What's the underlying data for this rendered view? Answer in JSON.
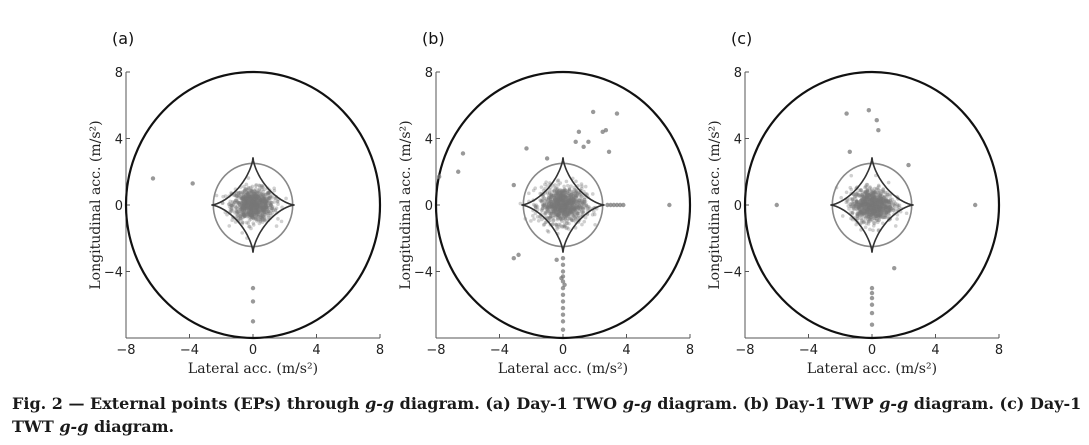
{
  "caption": {
    "fig_no": "Fig. 2",
    "sep": " — ",
    "parts": [
      {
        "text": "External points (EPs) through ",
        "italic": false
      },
      {
        "text": "g-g",
        "italic": true
      },
      {
        "text": " diagram. (a) Day-1 TWO ",
        "italic": false
      },
      {
        "text": "g-g",
        "italic": true
      },
      {
        "text": " diagram. (b) Day-1 TWP ",
        "italic": false
      },
      {
        "text": "g-g",
        "italic": true
      },
      {
        "text": " diagram. (c) Day-1 TWT ",
        "italic": false
      },
      {
        "text": "g-g",
        "italic": true
      },
      {
        "text": " diagram.",
        "italic": false
      }
    ]
  },
  "chart_data": [
    {
      "panel": "(a)",
      "type": "scatter",
      "xlabel": "Lateral acc. (m/s²)",
      "ylabel": "Longitudinal acc. (m/s²)",
      "xlim": [
        -8,
        8
      ],
      "ylim": [
        -8,
        8
      ],
      "xticks": [
        -8,
        -4,
        0,
        4,
        8
      ],
      "yticks": [
        8,
        4,
        0,
        -4
      ],
      "outer_circle_radius": 8,
      "inner_circle_radius": 2.5,
      "central_cluster": {
        "center": [
          0,
          0
        ],
        "spread_x": 1.2,
        "spread_y": 0.9
      },
      "external_points": [
        [
          -6.3,
          1.6
        ],
        [
          -3.8,
          1.3
        ],
        [
          0,
          -5
        ],
        [
          0,
          -5.8
        ],
        [
          0,
          -7
        ]
      ]
    },
    {
      "panel": "(b)",
      "type": "scatter",
      "xlabel": "Lateral acc. (m/s²)",
      "ylabel": "Longitudinal acc. (m/s²)",
      "xlim": [
        -8,
        8
      ],
      "ylim": [
        -8,
        8
      ],
      "xticks": [
        -8,
        -4,
        0,
        4,
        8
      ],
      "yticks": [
        8,
        4,
        0,
        -4
      ],
      "outer_circle_radius": 8,
      "inner_circle_radius": 2.5,
      "central_cluster": {
        "center": [
          0,
          0
        ],
        "spread_x": 1.3,
        "spread_y": 1.0
      },
      "external_points": [
        [
          -7.8,
          1.7
        ],
        [
          -6.3,
          3.1
        ],
        [
          -6.6,
          2.0
        ],
        [
          -2.3,
          3.4
        ],
        [
          -1.0,
          2.8
        ],
        [
          -3.1,
          1.2
        ],
        [
          0.8,
          3.8
        ],
        [
          1.0,
          4.4
        ],
        [
          1.3,
          3.5
        ],
        [
          1.6,
          3.8
        ],
        [
          1.9,
          5.6
        ],
        [
          2.5,
          4.4
        ],
        [
          2.7,
          4.5
        ],
        [
          3.4,
          5.5
        ],
        [
          2.9,
          3.2
        ],
        [
          2.8,
          0
        ],
        [
          3.0,
          0
        ],
        [
          3.2,
          0
        ],
        [
          3.4,
          0
        ],
        [
          3.6,
          0
        ],
        [
          3.8,
          0
        ],
        [
          6.7,
          0
        ],
        [
          -3.1,
          -3.2
        ],
        [
          -2.8,
          -3.0
        ],
        [
          -0.4,
          -3.3
        ],
        [
          0,
          -3.2
        ],
        [
          0,
          -3.6
        ],
        [
          0,
          -4.0
        ],
        [
          0,
          -4.3
        ],
        [
          0,
          -4.6
        ],
        [
          0,
          -5.0
        ],
        [
          0,
          -5.4
        ],
        [
          0,
          -5.8
        ],
        [
          0,
          -6.2
        ],
        [
          0,
          -6.6
        ],
        [
          0,
          -7.0
        ],
        [
          0,
          -7.5
        ],
        [
          -0.1,
          -4.4
        ],
        [
          0.1,
          -4.8
        ]
      ]
    },
    {
      "panel": "(c)",
      "type": "scatter",
      "xlabel": "Lateral acc. (m/s²)",
      "ylabel": "Longitudinal acc. (m/s²)",
      "xlim": [
        -8,
        8
      ],
      "ylim": [
        -8,
        8
      ],
      "xticks": [
        -8,
        -4,
        0,
        4,
        8
      ],
      "yticks": [
        8,
        4,
        0,
        -4
      ],
      "outer_circle_radius": 8,
      "inner_circle_radius": 2.5,
      "central_cluster": {
        "center": [
          0,
          0
        ],
        "spread_x": 1.2,
        "spread_y": 0.9
      },
      "external_points": [
        [
          -6.0,
          0
        ],
        [
          6.5,
          0
        ],
        [
          -1.6,
          5.5
        ],
        [
          -1.4,
          3.2
        ],
        [
          -0.2,
          5.7
        ],
        [
          0.3,
          5.1
        ],
        [
          0.4,
          4.5
        ],
        [
          2.3,
          2.4
        ],
        [
          1.4,
          -3.8
        ],
        [
          0,
          -5.0
        ],
        [
          0,
          -5.3
        ],
        [
          0,
          -5.6
        ],
        [
          0,
          -6.0
        ],
        [
          0,
          -6.5
        ],
        [
          0,
          -7.2
        ]
      ]
    }
  ],
  "colors": {
    "outer_circle": "#111111",
    "inner_circle": "#888888",
    "diamond": "#333333",
    "points": "#777777",
    "axis": "#555555",
    "background": "#ffffff"
  }
}
